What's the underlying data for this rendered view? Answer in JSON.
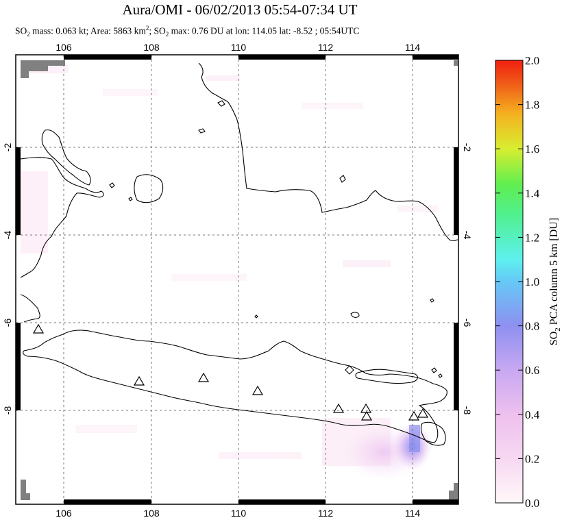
{
  "title": "Aura/OMI - 06/02/2013 05:54-07:34 UT",
  "subtitle": {
    "prefix": "SO",
    "sub2": "2",
    "mass": " mass: 0.063 kt; Area: 5863 km",
    "sup2": "2",
    "rest1": "; SO",
    "sub3": "2",
    "rest2": " max: 0.76 DU at lon: 114.05 lat: -8.52 ; 05:54UTC"
  },
  "map": {
    "lon_ticks": [
      "106",
      "108",
      "110",
      "112",
      "114"
    ],
    "lat_ticks": [
      "-2",
      "-4",
      "-6",
      "-8"
    ],
    "lon_range": [
      105,
      115
    ],
    "lat_range": [
      -10.2,
      0.0
    ]
  },
  "colorbar": {
    "labels": [
      "2.0",
      "1.8",
      "1.6",
      "1.4",
      "1.2",
      "1.0",
      "0.8",
      "0.6",
      "0.4",
      "0.2",
      "0.0"
    ],
    "title_prefix": "SO",
    "title_sub": "2",
    "title_rest": " PCA column 5 km [DU]",
    "range": [
      0.0,
      2.0
    ],
    "colors": [
      "#fff7f7",
      "#f3c8f0",
      "#c8a0f0",
      "#8a8cf0",
      "#5ab4f5",
      "#5ae8f0",
      "#4ef08a",
      "#8cf040",
      "#e8ec30",
      "#f0a020",
      "#f05018",
      "#ff2000"
    ]
  },
  "volcano_markers": [
    {
      "lon": 105.42,
      "lat": -6.1
    },
    {
      "lon": 107.73,
      "lat": -7.32
    },
    {
      "lon": 109.21,
      "lat": -7.24
    },
    {
      "lon": 110.44,
      "lat": -7.54
    },
    {
      "lon": 112.31,
      "lat": -7.94
    },
    {
      "lon": 112.92,
      "lat": -7.95
    },
    {
      "lon": 112.95,
      "lat": -8.1
    },
    {
      "lon": 114.04,
      "lat": -8.13
    },
    {
      "lon": 114.24,
      "lat": -8.06
    }
  ],
  "so2_max": {
    "value": 0.76,
    "lon": 114.05,
    "lat": -8.52
  }
}
